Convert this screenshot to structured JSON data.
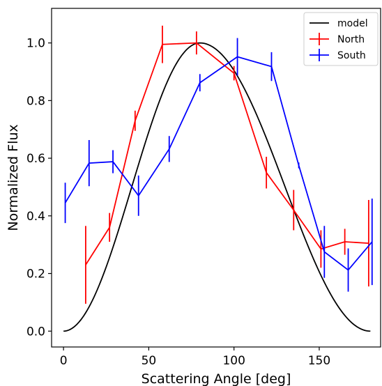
{
  "chart_data": {
    "type": "line",
    "xlabel": "Scattering Angle [deg]",
    "ylabel": "Normalized Flux",
    "xlim": [
      -7,
      186
    ],
    "ylim": [
      -0.055,
      1.12
    ],
    "xticks": [
      0,
      50,
      100,
      150
    ],
    "yticks": [
      0.0,
      0.2,
      0.4,
      0.6,
      0.8,
      1.0
    ],
    "legend_position": "top-right",
    "grid": false,
    "series": [
      {
        "name": "model",
        "color": "#000000",
        "kind": "curve",
        "peak_x": 80,
        "range": [
          0,
          180
        ]
      },
      {
        "name": "North",
        "color": "#ff0000",
        "kind": "errorbar",
        "x": [
          13,
          27,
          42,
          58,
          78,
          100,
          119,
          135,
          151,
          165,
          179
        ],
        "y": [
          0.23,
          0.36,
          0.73,
          0.995,
          1.0,
          0.895,
          0.55,
          0.42,
          0.285,
          0.31,
          0.305
        ],
        "err": [
          0.135,
          0.05,
          0.035,
          0.065,
          0.04,
          0.025,
          0.055,
          0.07,
          0.065,
          0.045,
          0.15
        ]
      },
      {
        "name": "South",
        "color": "#0000ff",
        "kind": "errorbar",
        "x": [
          1,
          15,
          29,
          44,
          62,
          80,
          102,
          122,
          138,
          153,
          167,
          181
        ],
        "y": [
          0.445,
          0.583,
          0.588,
          0.47,
          0.632,
          0.862,
          0.952,
          0.918,
          0.575,
          0.275,
          0.212,
          0.31
        ],
        "err": [
          0.07,
          0.08,
          0.04,
          0.07,
          0.045,
          0.03,
          0.065,
          0.05,
          0.01,
          0.09,
          0.075,
          0.15
        ]
      }
    ]
  }
}
